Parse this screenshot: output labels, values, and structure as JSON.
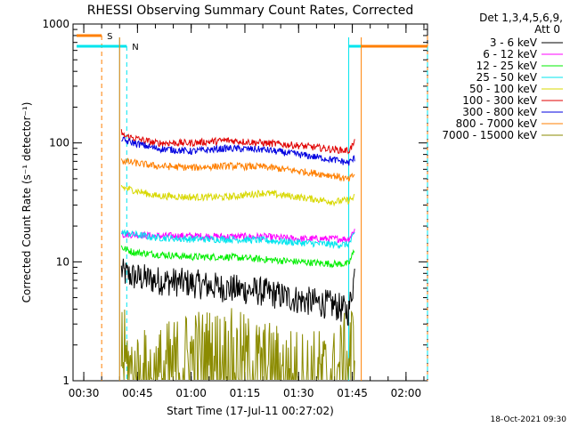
{
  "chart_data": {
    "type": "line",
    "title": "RHESSI Observing Summary Count Rates, Corrected",
    "xlabel": "Start Time (17-Jul-11 00:27:02)",
    "ylabel": "Corrected Count Rate (s⁻¹ detector⁻¹)",
    "yscale": "log",
    "ylim": [
      1,
      1000
    ],
    "xlim_minutes": [
      27.0,
      126.0
    ],
    "x_unit": "minutes after 00:00 UT",
    "y_ticks": [
      {
        "value": 1,
        "label": "1"
      },
      {
        "value": 10,
        "label": "10"
      },
      {
        "value": 100,
        "label": "100"
      },
      {
        "value": 1000,
        "label": "1000"
      }
    ],
    "x_ticks": [
      {
        "value": 30,
        "label": "00:30"
      },
      {
        "value": 45,
        "label": "00:45"
      },
      {
        "value": 60,
        "label": "01:00"
      },
      {
        "value": 75,
        "label": "01:15"
      },
      {
        "value": 90,
        "label": "01:30"
      },
      {
        "value": 105,
        "label": "01:45"
      },
      {
        "value": 120,
        "label": "02:00"
      }
    ],
    "legend_title": [
      "Det 1,3,4,5,6,9,",
      "Att 0"
    ],
    "series": [
      {
        "name": "3 - 6 keV",
        "color": "#000000",
        "x": [
          40.5,
          41,
          44,
          50,
          60,
          70,
          80,
          90,
          100,
          104,
          105.8
        ],
        "values": [
          8.5,
          8.0,
          7.5,
          7.0,
          6.6,
          6.0,
          5.6,
          4.8,
          4.3,
          3.8,
          8.5
        ]
      },
      {
        "name": "6 - 12 keV",
        "color": "#ff00ff",
        "x": [
          40.5,
          41,
          44,
          50,
          60,
          70,
          80,
          90,
          100,
          104,
          105.8
        ],
        "values": [
          19,
          17,
          17,
          16.5,
          16.5,
          16.3,
          16.3,
          15.6,
          15.6,
          15.6,
          19
        ]
      },
      {
        "name": "12 - 25 keV",
        "color": "#00ee00",
        "x": [
          40.5,
          41,
          44,
          50,
          60,
          70,
          80,
          90,
          100,
          104,
          105.8
        ],
        "values": [
          13.5,
          13,
          12,
          11.6,
          11,
          11,
          10.5,
          10,
          9.6,
          9.6,
          13
        ]
      },
      {
        "name": "25 - 50 keV",
        "color": "#00e5ee",
        "x": [
          40.5,
          41,
          44,
          50,
          60,
          70,
          80,
          90,
          100,
          104,
          105.8
        ],
        "values": [
          18,
          17.5,
          17,
          16,
          15.5,
          15.5,
          15.2,
          14.5,
          14,
          14,
          17.5
        ]
      },
      {
        "name": "50 - 100 keV",
        "color": "#d8d800",
        "x": [
          40.5,
          41,
          44,
          50,
          60,
          70,
          80,
          90,
          100,
          104,
          105.8
        ],
        "values": [
          44,
          42,
          40,
          36,
          35,
          35,
          38,
          35,
          32,
          33,
          35
        ]
      },
      {
        "name": "100 - 300 keV",
        "color": "#e00000",
        "x": [
          40.5,
          41,
          44,
          50,
          60,
          70,
          80,
          90,
          100,
          104,
          105.8
        ],
        "values": [
          125,
          115,
          110,
          100,
          100,
          105,
          100,
          95,
          88,
          86,
          102
        ]
      },
      {
        "name": "300 - 800 keV",
        "color": "#0000e0",
        "x": [
          40.5,
          41,
          44,
          50,
          60,
          70,
          80,
          90,
          100,
          104,
          105.8
        ],
        "values": [
          110,
          105,
          100,
          90,
          85,
          90,
          88,
          80,
          72,
          68,
          75
        ]
      },
      {
        "name": "800 - 7000 keV",
        "color": "#ff7f00",
        "x": [
          40.5,
          41,
          44,
          50,
          60,
          70,
          80,
          90,
          100,
          104,
          105.8
        ],
        "values": [
          75,
          70,
          68,
          64,
          62,
          64,
          63,
          58,
          53,
          49,
          55
        ]
      },
      {
        "name": "7000 - 15000 keV",
        "color": "#8b8b00",
        "x": [
          40.5,
          41,
          44,
          50,
          60,
          70,
          80,
          90,
          100,
          104,
          105.8
        ],
        "values": [
          2,
          1.5,
          1,
          1,
          1.5,
          1.5,
          1.2,
          1,
          1,
          1.5,
          2
        ]
      }
    ],
    "annotations": [
      {
        "label": "S",
        "color": "#ff7f00",
        "x_start": 28.0,
        "x_end": 35.0,
        "y": 800,
        "vline": 35.0,
        "vline_end": 126.0
      },
      {
        "label": "N",
        "color": "#00e5ee",
        "x_start": 28.0,
        "x_end": 42.0,
        "y": 650,
        "vline": 42.0,
        "vline_end": 126.0
      }
    ],
    "data_gaps": [
      {
        "color": "#00e5ee",
        "x_start": 40.0,
        "x_end": 104.0
      },
      {
        "color": "#ff7f00",
        "x_start": 40.0,
        "x_end": 107.5
      }
    ],
    "footer_date": "18-Oct-2021 09:30"
  }
}
